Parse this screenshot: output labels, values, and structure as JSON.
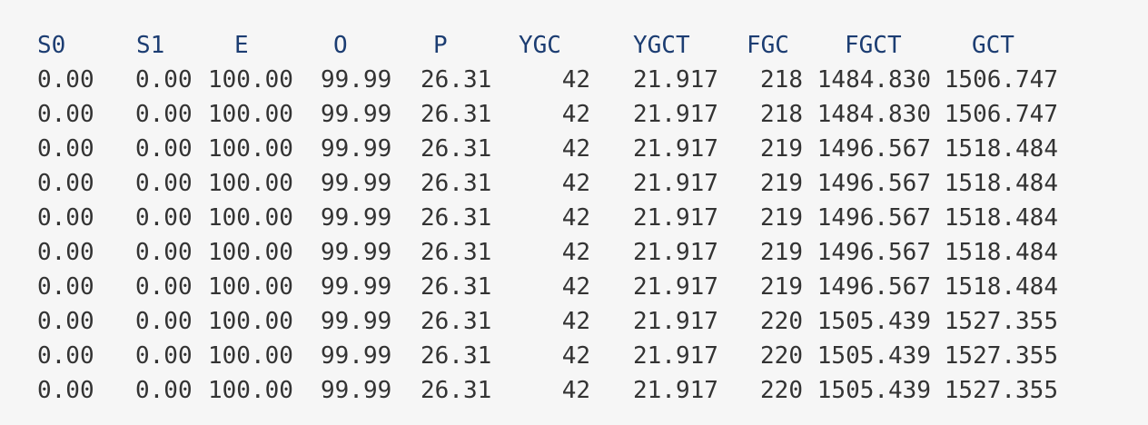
{
  "columns": [
    "S0",
    "S1",
    "E",
    "O",
    "P",
    "YGC",
    "YGCT",
    "FGC",
    "FGCT",
    "GCT"
  ],
  "rows": [
    [
      "0.00",
      "0.00",
      "100.00",
      "99.99",
      "26.31",
      "42",
      "21.917",
      "218",
      "1484.830",
      "1506.747"
    ],
    [
      "0.00",
      "0.00",
      "100.00",
      "99.99",
      "26.31",
      "42",
      "21.917",
      "218",
      "1484.830",
      "1506.747"
    ],
    [
      "0.00",
      "0.00",
      "100.00",
      "99.99",
      "26.31",
      "42",
      "21.917",
      "219",
      "1496.567",
      "1518.484"
    ],
    [
      "0.00",
      "0.00",
      "100.00",
      "99.99",
      "26.31",
      "42",
      "21.917",
      "219",
      "1496.567",
      "1518.484"
    ],
    [
      "0.00",
      "0.00",
      "100.00",
      "99.99",
      "26.31",
      "42",
      "21.917",
      "219",
      "1496.567",
      "1518.484"
    ],
    [
      "0.00",
      "0.00",
      "100.00",
      "99.99",
      "26.31",
      "42",
      "21.917",
      "219",
      "1496.567",
      "1518.484"
    ],
    [
      "0.00",
      "0.00",
      "100.00",
      "99.99",
      "26.31",
      "42",
      "21.917",
      "219",
      "1496.567",
      "1518.484"
    ],
    [
      "0.00",
      "0.00",
      "100.00",
      "99.99",
      "26.31",
      "42",
      "21.917",
      "220",
      "1505.439",
      "1527.355"
    ],
    [
      "0.00",
      "0.00",
      "100.00",
      "99.99",
      "26.31",
      "42",
      "21.917",
      "220",
      "1505.439",
      "1527.355"
    ],
    [
      "0.00",
      "0.00",
      "100.00",
      "99.99",
      "26.31",
      "42",
      "21.917",
      "220",
      "1505.439",
      "1527.355"
    ]
  ],
  "colors": {
    "background": "#f6f6f6",
    "header_text": "#1c3d72",
    "body_text": "#333333"
  }
}
